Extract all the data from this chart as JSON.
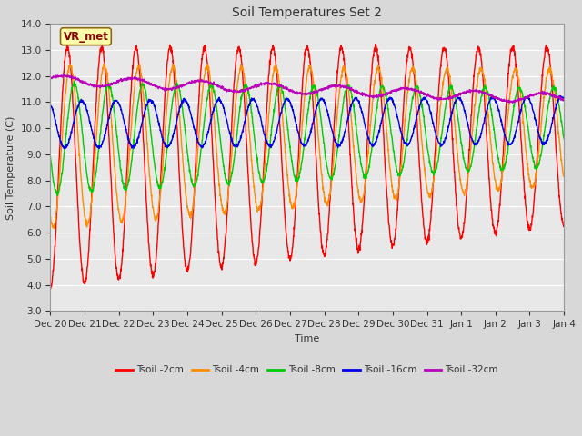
{
  "title": "Soil Temperatures Set 2",
  "xlabel": "Time",
  "ylabel": "Soil Temperature (C)",
  "ylim": [
    3.0,
    14.0
  ],
  "yticks": [
    3.0,
    4.0,
    5.0,
    6.0,
    7.0,
    8.0,
    9.0,
    10.0,
    11.0,
    12.0,
    13.0,
    14.0
  ],
  "xtick_labels": [
    "Dec 20",
    "Dec 21",
    "Dec 22",
    "Dec 23",
    "Dec 24",
    "Dec 25",
    "Dec 26",
    "Dec 27",
    "Dec 28",
    "Dec 29",
    "Dec 30",
    "Dec 31",
    "Jan 1",
    "Jan 2",
    "Jan 3",
    "Jan 4"
  ],
  "colors": {
    "Tsoil -2cm": "#FF0000",
    "Tsoil -4cm": "#FF8C00",
    "Tsoil -8cm": "#00CC00",
    "Tsoil -16cm": "#0000EE",
    "Tsoil -32cm": "#BB00BB"
  },
  "bg_color": "#E8E8E8",
  "grid_color": "#FFFFFF",
  "fig_facecolor": "#D8D8D8",
  "annotation_text": "VR_met",
  "annotation_bg": "#FFFFAA",
  "annotation_border": "#8B6914",
  "linewidth": 1.0
}
